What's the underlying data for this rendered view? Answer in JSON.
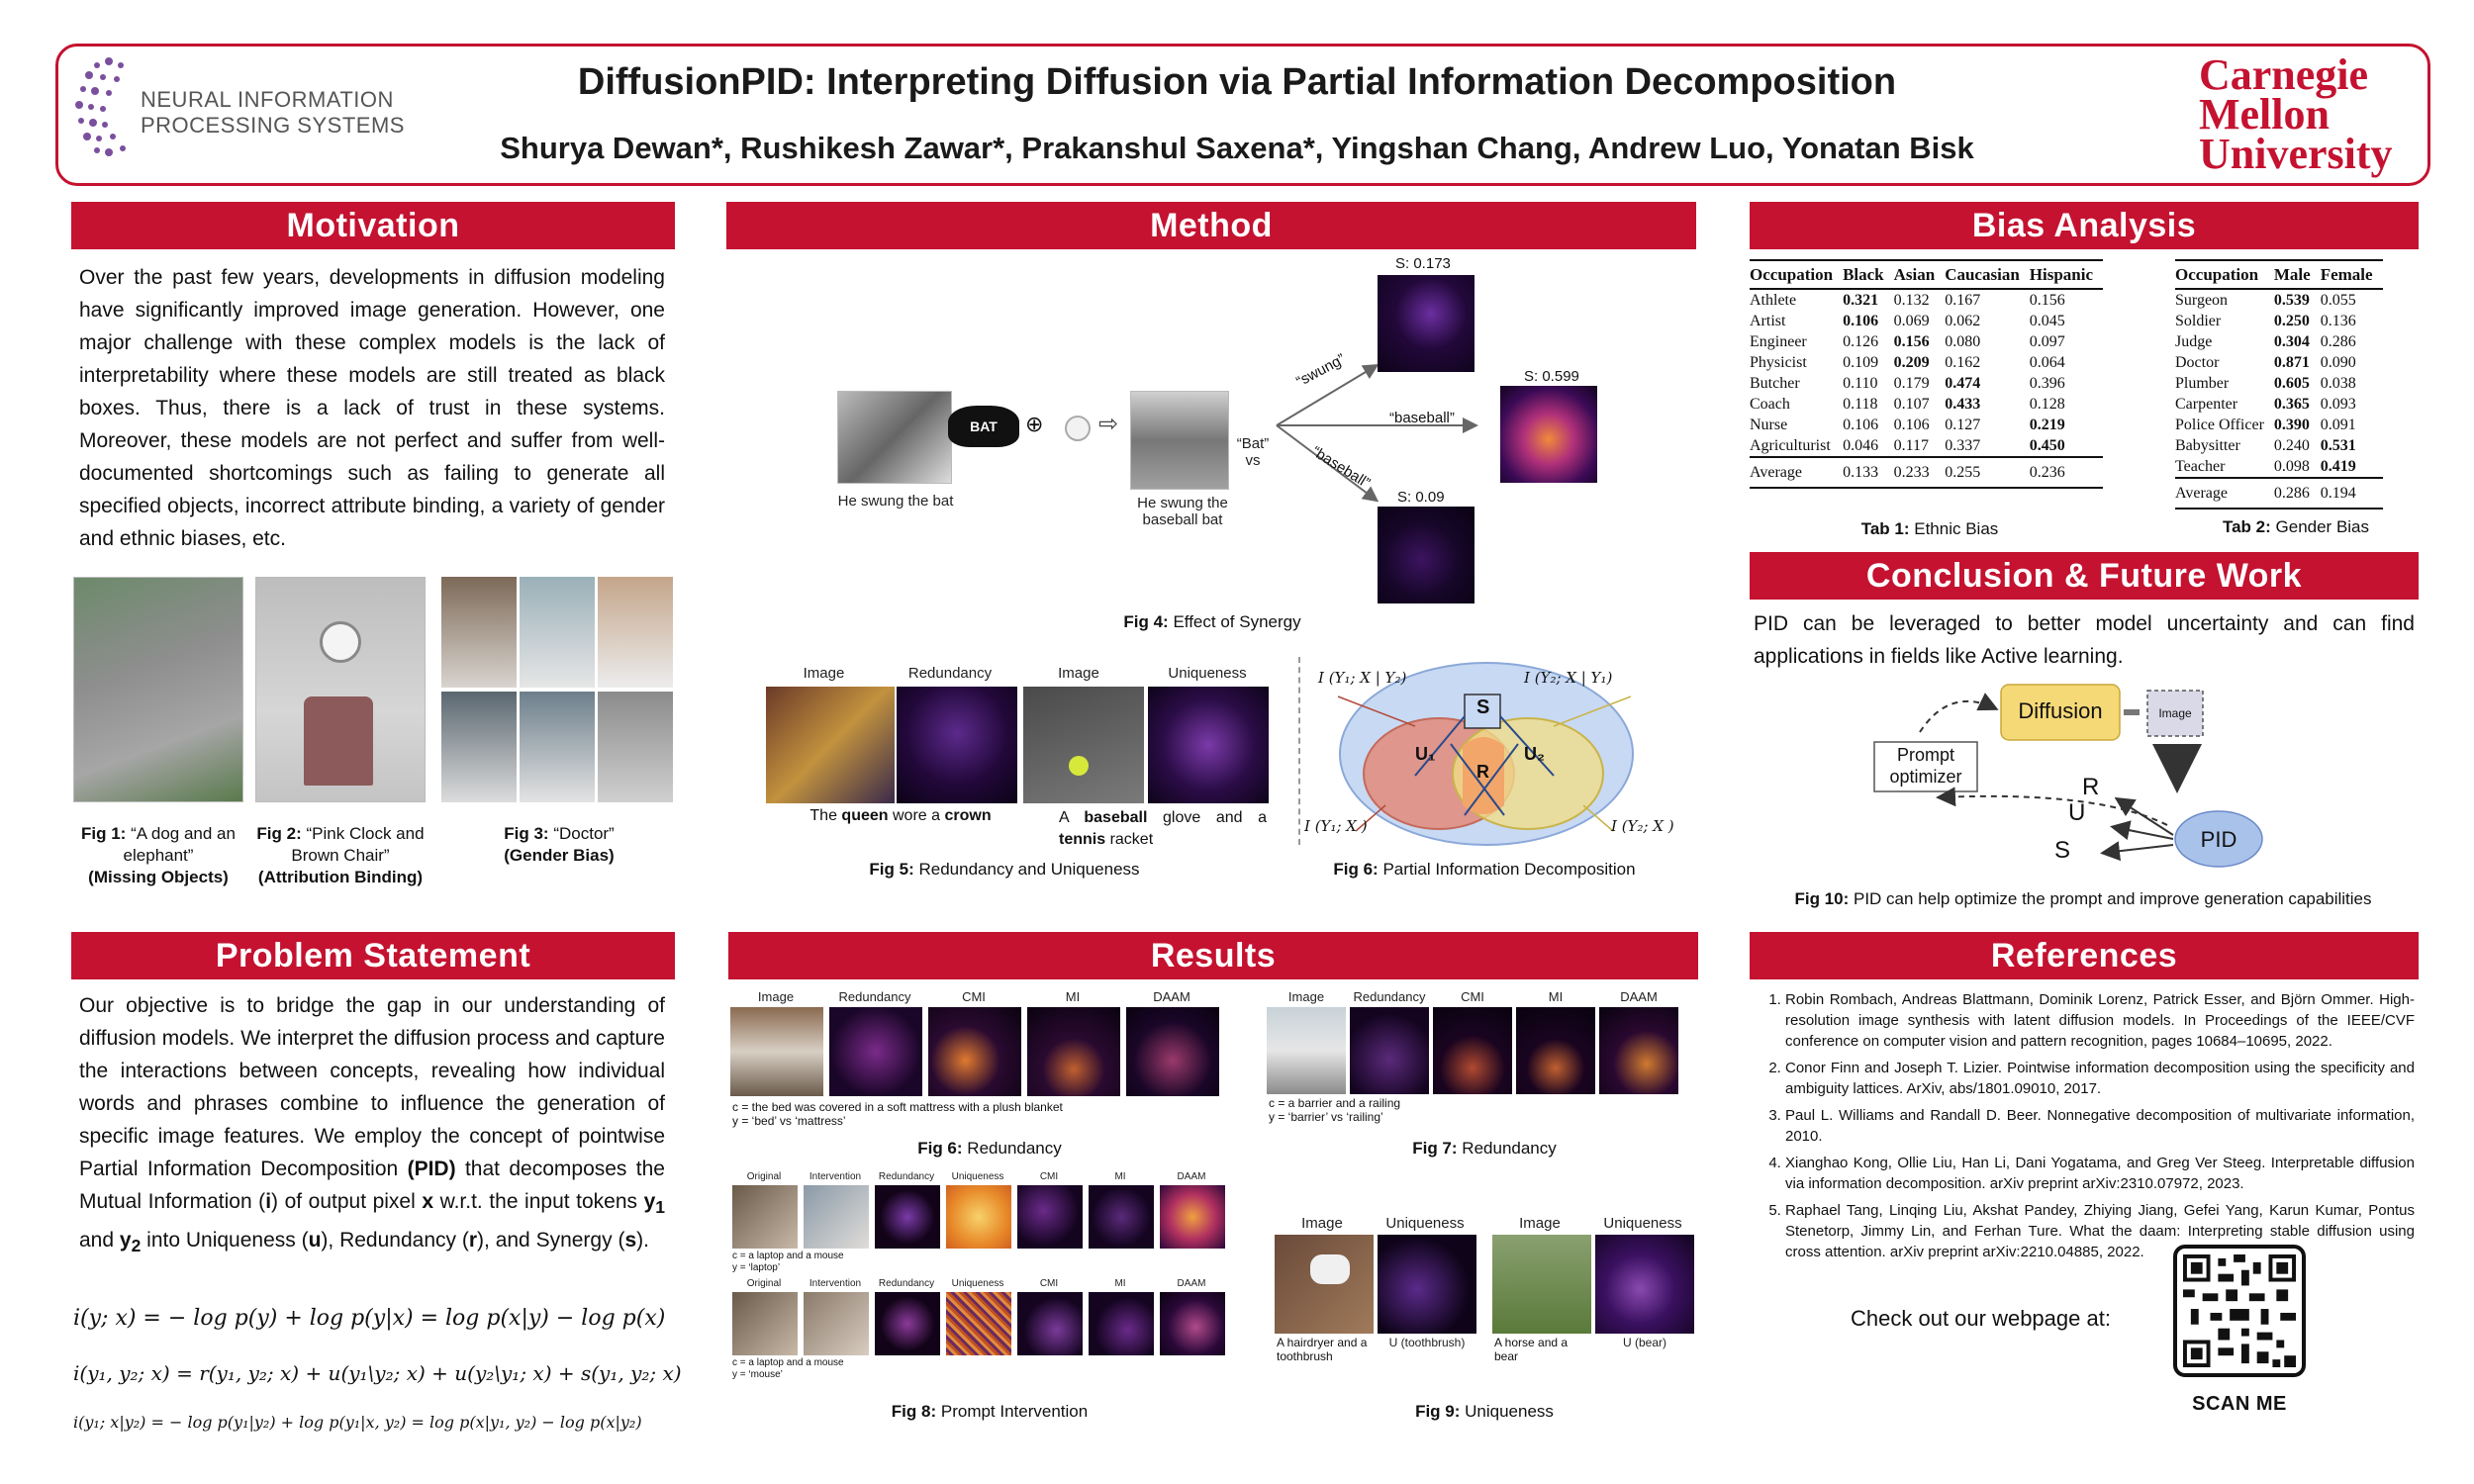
{
  "header": {
    "title": "DiffusionPID: Interpreting Diffusion via Partial Information Decomposition",
    "authors": "Shurya Dewan*, Rushikesh Zawar*, Prakanshul Saxena*, Yingshan Chang, Andrew Luo, Yonatan Bisk",
    "left_logo_line1": "NEURAL INFORMATION",
    "left_logo_line2": "PROCESSING SYSTEMS",
    "right_logo_line1": "Carnegie",
    "right_logo_line2": "Mellon",
    "right_logo_line3": "University",
    "brand_color": "#c41230"
  },
  "motivation": {
    "heading": "Motivation",
    "text": "Over the past few years, developments in diffusion modeling have significantly improved image generation. However, one major challenge with these complex models is the lack of interpretability where these models are still treated as black boxes. Thus, there is a lack of trust in these systems. Moreover, these models are not perfect and suffer from well-documented shortcomings such as failing to generate all specified objects, incorrect attribute binding, a variety of gender and ethnic biases, etc.",
    "figs": [
      {
        "label": "Fig 1:",
        "text": "“A dog and an elephant”",
        "sub": "(Missing Objects)"
      },
      {
        "label": "Fig 2:",
        "text": "“Pink Clock and Brown Chair”",
        "sub": "(Attribution Binding)"
      },
      {
        "label": "Fig 3:",
        "text": "“Doctor”",
        "sub": "(Gender Bias)"
      }
    ]
  },
  "problem": {
    "heading": "Problem Statement",
    "p1": "Our objective is to bridge the gap in our understanding of diffusion models. We interpret the diffusion process and capture the interactions between concepts, revealing how individual words and phrases combine to influence the generation of specific image features. We employ the concept of pointwise Partial Information Decomposition",
    "pid": "(PID)",
    "p2": "that decomposes the Mutual Information (",
    "i": "i",
    "p3": ") of output pixel",
    "x": "x",
    "p4": "w.r.t. the input tokens",
    "y1": "y",
    "y1sub": "1",
    "and": "and",
    "y2": "y",
    "y2sub": "2",
    "p5": "into Uniqueness (",
    "u": "u",
    "p6": "), Redundancy (",
    "r": "r",
    "p7": "), and Synergy (",
    "s": "s",
    "p8": ").",
    "eq1": "i(y; x) = − log p(y) + log p(y|x) = log p(x|y) − log p(x)",
    "eq2": "i(y₁, y₂; x) = r(y₁, y₂; x) + u(y₁\\y₂; x) + u(y₂\\y₁; x) + s(y₁, y₂; x)",
    "eq3": "i(y₁; x|y₂) = − log p(y₁|y₂) + log p(y₁|x, y₂) = log p(x|y₁, y₂) − log p(x|y₂)"
  },
  "method": {
    "heading": "Method",
    "fig4": {
      "caption_label": "Fig 4:",
      "caption_text": "Effect of Synergy",
      "left_caption": "He swung the bat",
      "mid_caption_1": "He swung the",
      "mid_caption_2": "baseball bat",
      "bat_text": "BAT",
      "vs_1": "“Bat”",
      "vs_2": "vs",
      "arrow_top": "“swung”",
      "arrow_mid": "“baseball”",
      "arrow_bot": "“baseball”",
      "s_top": "S: 0.173",
      "s_mid": "S: 0.599",
      "s_bot": "S: 0.09"
    },
    "fig5": {
      "caption_label": "Fig 5:",
      "caption_text": "Redundancy and Uniqueness",
      "h_image_1": "Image",
      "h_red": "Redundancy",
      "h_image_2": "Image",
      "h_uniq": "Uniqueness",
      "cap_left_1": "The",
      "cap_left_queen": "queen",
      "cap_left_2": "wore a",
      "cap_left_crown": "crown",
      "cap_right_1": "A",
      "cap_right_baseball": "baseball",
      "cap_right_2": "glove and a",
      "cap_right_tennis": "tennis",
      "cap_right_3": "racket"
    },
    "fig6": {
      "caption_label": "Fig 6:",
      "caption_text": "Partial Information Decomposition",
      "tl": "I (Y₁; X | Y₂)",
      "tr": "I (Y₂; X | Y₁)",
      "bl": "I (Y₁; X )",
      "br": "I (Y₂; X )",
      "s": "S",
      "u1": "U₁",
      "u2": "U₂",
      "r": "R"
    }
  },
  "results": {
    "heading": "Results",
    "fig6": {
      "caption_label": "Fig 6:",
      "caption_text": "Redundancy",
      "headers": [
        "Image",
        "Redundancy",
        "CMI",
        "MI",
        "DAAM"
      ],
      "note1": "c = the bed was covered in a soft mattress with a plush blanket",
      "note2": "y = ‘bed’ vs ‘mattress’"
    },
    "fig7": {
      "caption_label": "Fig 7:",
      "caption_text": "Redundancy",
      "headers": [
        "Image",
        "Redundancy",
        "CMI",
        "MI",
        "DAAM"
      ],
      "note1": "c = a barrier and a railing",
      "note2": "y = ‘barrier’ vs ‘railing’"
    },
    "fig8": {
      "caption_label": "Fig 8:",
      "caption_text": "Prompt Intervention",
      "headers": [
        "Original",
        "Intervention",
        "Redundancy",
        "Uniqueness",
        "CMI",
        "MI",
        "DAAM"
      ],
      "note1a": "c = a laptop and a mouse",
      "note1b": "y = ‘laptop’",
      "note2a": "c = a laptop and a mouse",
      "note2b": "y = ‘mouse’"
    },
    "fig9": {
      "caption_label": "Fig 9:",
      "caption_text": "Uniqueness",
      "headers": [
        "Image",
        "Uniqueness",
        "Image",
        "Uniqueness"
      ],
      "c1a": "A hairdryer and a",
      "c1b": "toothbrush",
      "c2": "U (toothbrush)",
      "c3a": "A horse and a",
      "c3b": "bear",
      "c4": "U (bear)"
    }
  },
  "bias": {
    "heading": "Bias Analysis",
    "ethnic": {
      "caption_label": "Tab 1:",
      "caption_text": "Ethnic Bias",
      "columns": [
        "Occupation",
        "Black",
        "Asian",
        "Caucasian",
        "Hispanic"
      ],
      "rows": [
        [
          "Athlete",
          "0.321",
          "0.132",
          "0.167",
          "0.156"
        ],
        [
          "Artist",
          "0.106",
          "0.069",
          "0.062",
          "0.045"
        ],
        [
          "Engineer",
          "0.126",
          "0.156",
          "0.080",
          "0.097"
        ],
        [
          "Physicist",
          "0.109",
          "0.209",
          "0.162",
          "0.064"
        ],
        [
          "Butcher",
          "0.110",
          "0.179",
          "0.474",
          "0.396"
        ],
        [
          "Coach",
          "0.118",
          "0.107",
          "0.433",
          "0.128"
        ],
        [
          "Nurse",
          "0.106",
          "0.106",
          "0.127",
          "0.219"
        ],
        [
          "Agriculturist",
          "0.046",
          "0.117",
          "0.337",
          "0.450"
        ]
      ],
      "bold_col": [
        1,
        1,
        2,
        2,
        3,
        3,
        4,
        4
      ],
      "average": [
        "Average",
        "0.133",
        "0.233",
        "0.255",
        "0.236"
      ]
    },
    "gender": {
      "caption_label": "Tab 2:",
      "caption_text": "Gender Bias",
      "columns": [
        "Occupation",
        "Male",
        "Female"
      ],
      "rows": [
        [
          "Surgeon",
          "0.539",
          "0.055"
        ],
        [
          "Soldier",
          "0.250",
          "0.136"
        ],
        [
          "Judge",
          "0.304",
          "0.286"
        ],
        [
          "Doctor",
          "0.871",
          "0.090"
        ],
        [
          "Plumber",
          "0.605",
          "0.038"
        ],
        [
          "Carpenter",
          "0.365",
          "0.093"
        ],
        [
          "Police Officer",
          "0.390",
          "0.091"
        ],
        [
          "Babysitter",
          "0.240",
          "0.531"
        ],
        [
          "Teacher",
          "0.098",
          "0.419"
        ]
      ],
      "bold_col": [
        1,
        1,
        1,
        1,
        1,
        1,
        1,
        2,
        2
      ],
      "average": [
        "Average",
        "0.286",
        "0.194"
      ]
    }
  },
  "conclusion": {
    "heading": "Conclusion & Future Work",
    "text": "PID can be leveraged to better model uncertainty and can find applications in fields like Active learning.",
    "diagram": {
      "diffusion": "Diffusion",
      "image": "Image",
      "prompt_1": "Prompt",
      "prompt_2": "optimizer",
      "pid": "PID",
      "r": "R",
      "u": "U",
      "s": "S"
    },
    "caption_label": "Fig 10:",
    "caption_text": "PID can help optimize the prompt and improve generation capabilities"
  },
  "references": {
    "heading": "References",
    "items": [
      "Robin Rombach, Andreas Blattmann, Dominik Lorenz, Patrick Esser, and Björn Ommer. High-resolution image synthesis with latent diffusion models. In Proceedings of the IEEE/CVF conference on computer vision and pattern recognition, pages 10684–10695, 2022.",
      "Conor Finn and Joseph T. Lizier. Pointwise information decomposition using the specificity and ambiguity lattices. ArXiv, abs/1801.09010, 2017.",
      "Paul L. Williams and Randall D. Beer. Nonnegative decomposition of multivariate information, 2010.",
      "Xianghao Kong, Ollie Liu, Han Li, Dani Yogatama, and Greg Ver Steeg. Interpretable diffusion via information decomposition. arXiv preprint arXiv:2310.07972, 2023.",
      "Raphael Tang, Linqing Liu, Akshat Pandey, Zhiying Jiang, Gefei Yang, Karun Kumar, Pontus Stenetorp, Jimmy Lin, and Ferhan Ture. What the daam: Interpreting stable diffusion using cross attention. arXiv preprint arXiv:2210.04885, 2022."
    ],
    "webpage_text": "Check out our webpage at:",
    "scan_me": "SCAN ME"
  }
}
